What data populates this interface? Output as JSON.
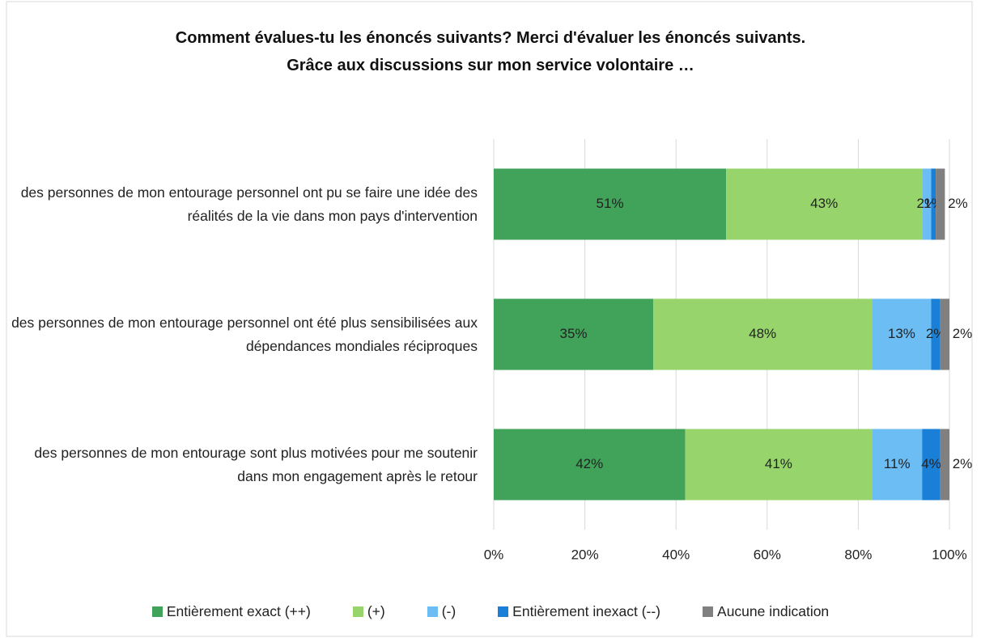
{
  "chart_data": {
    "type": "stacked-barh",
    "title": "Comment évalues-tu les énoncés suivants? Merci d'évaluer les énoncés suivants.\nGrâce aux discussions sur mon service volontaire …",
    "categories": [
      "des personnes de mon entourage personnel ont pu se faire une idée des réalités de la vie dans mon pays d'intervention",
      "des personnes de mon entourage personnel ont été plus sensibilisées aux dépendances mondiales réciproques",
      "des personnes de mon entourage sont plus motivées pour me soutenir dans mon engagement après le retour"
    ],
    "series": [
      {
        "name": "Entièrement exact (++)",
        "color": "#41a35a",
        "values": [
          51,
          35,
          42
        ],
        "value_labels": [
          "51%",
          "35%",
          "42%"
        ]
      },
      {
        "name": "(+)",
        "color": "#97d56c",
        "values": [
          43,
          48,
          41
        ],
        "value_labels": [
          "43%",
          "48%",
          "41%"
        ]
      },
      {
        "name": "(-)",
        "color": "#6dbdf5",
        "values": [
          2,
          13,
          11
        ],
        "value_labels": [
          "2%",
          "13%",
          "11%"
        ]
      },
      {
        "name": "Entièrement inexact (--)",
        "color": "#1a7fd6",
        "values": [
          1,
          2,
          4
        ],
        "value_labels": [
          "1%",
          "2%",
          "4%"
        ]
      },
      {
        "name": "Aucune indication",
        "color": "#808080",
        "values": [
          2,
          2,
          2
        ],
        "value_labels": [
          "2%",
          "2%",
          "2%"
        ]
      }
    ],
    "xlim": [
      0,
      100
    ],
    "xticks": [
      {
        "value": 0,
        "label": "0%"
      },
      {
        "value": 20,
        "label": "20%"
      },
      {
        "value": 40,
        "label": "40%"
      },
      {
        "value": 60,
        "label": "60%"
      },
      {
        "value": 80,
        "label": "80%"
      },
      {
        "value": 100,
        "label": "100%"
      }
    ],
    "grid": true,
    "legend": "bottom"
  }
}
